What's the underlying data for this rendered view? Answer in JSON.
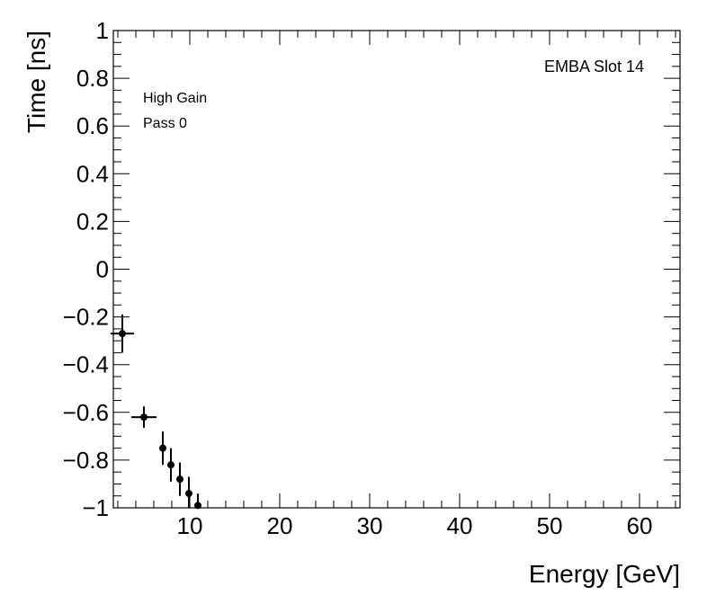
{
  "chart_data": {
    "type": "scatter",
    "title": "",
    "xlabel": "Energy [GeV]",
    "ylabel": "Time [ns]",
    "xlim": [
      1.5,
      64.5
    ],
    "ylim": [
      -1,
      1
    ],
    "xticks": [
      10,
      20,
      30,
      40,
      50,
      60
    ],
    "xtick_labels": [
      "10",
      "20",
      "30",
      "40",
      "50",
      "60"
    ],
    "yticks": [
      -1,
      -0.8,
      -0.6,
      -0.4,
      -0.2,
      0,
      0.2,
      0.4,
      0.6,
      0.8,
      1
    ],
    "ytick_labels": [
      "−1",
      "−0.8",
      "−0.6",
      "−0.4",
      "−0.2",
      "0",
      "0.2",
      "0.4",
      "0.6",
      "0.8",
      "1"
    ],
    "annotations": {
      "left_line1": "High Gain",
      "left_line2": "Pass 0",
      "right": "EMBA Slot 14"
    },
    "points": [
      {
        "x": 2.5,
        "y": -0.27,
        "xerr": 1.3,
        "yerr": 0.08
      },
      {
        "x": 4.9,
        "y": -0.62,
        "xerr": 1.4,
        "yerr": 0.045
      },
      {
        "x": 7.0,
        "y": -0.75,
        "xerr": 0.3,
        "yerr": 0.07
      },
      {
        "x": 7.9,
        "y": -0.82,
        "xerr": 0.3,
        "yerr": 0.07
      },
      {
        "x": 8.9,
        "y": -0.88,
        "xerr": 0.3,
        "yerr": 0.07
      },
      {
        "x": 9.9,
        "y": -0.94,
        "xerr": 0.3,
        "yerr": 0.07
      },
      {
        "x": 10.9,
        "y": -0.99,
        "xerr": 0.3,
        "yerr": 0.05
      }
    ],
    "grid": false,
    "marker_color": "#000000"
  }
}
